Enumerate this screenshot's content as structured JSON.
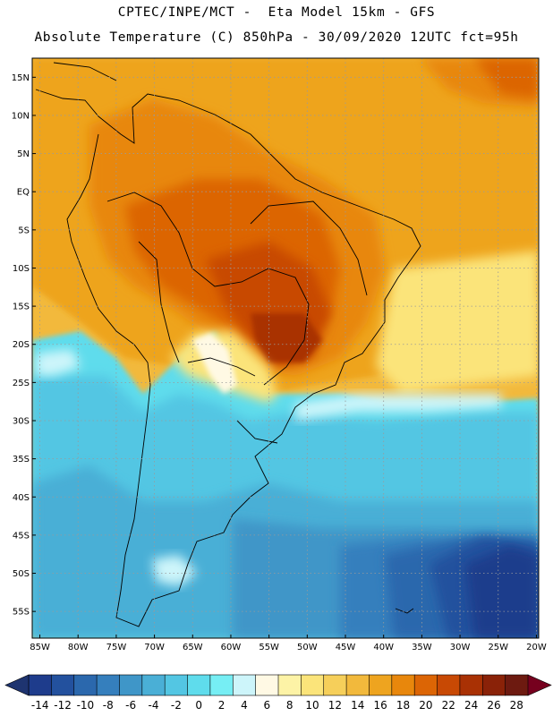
{
  "title_line1": "CPTEC/INPE/MCT -  Eta Model 15km - GFS",
  "title_line2": "Absolute Temperature (C) 850hPa - 30/09/2020 12UTC fct=95h",
  "map": {
    "lat_labels": [
      "15N",
      "10N",
      "5N",
      "EQ",
      "5S",
      "10S",
      "15S",
      "20S",
      "25S",
      "30S",
      "35S",
      "40S",
      "45S",
      "50S",
      "55S"
    ],
    "lat_values": [
      15,
      10,
      5,
      0,
      -5,
      -10,
      -15,
      -20,
      -25,
      -30,
      -35,
      -40,
      -45,
      -50,
      -55
    ],
    "lon_labels": [
      "85W",
      "80W",
      "75W",
      "70W",
      "65W",
      "60W",
      "55W",
      "50W",
      "45W",
      "40W",
      "35W",
      "30W",
      "25W",
      "20W"
    ],
    "lon_values": [
      -85,
      -80,
      -75,
      -70,
      -65,
      -60,
      -55,
      -50,
      -45,
      -40,
      -35,
      -30,
      -25,
      -20
    ],
    "extent": {
      "lon_min": -86,
      "lon_max": -19.7,
      "lat_min": -58.5,
      "lat_max": 17.5
    }
  },
  "colorbar": {
    "labels": [
      "-14",
      "-12",
      "-10",
      "-8",
      "-6",
      "-4",
      "-2",
      "0",
      "2",
      "4",
      "6",
      "8",
      "10",
      "12",
      "14",
      "16",
      "18",
      "20",
      "22",
      "24",
      "26",
      "28"
    ],
    "colors": [
      "#1e3c8c",
      "#23519e",
      "#2b68ad",
      "#357fbd",
      "#3f96c8",
      "#4aafd6",
      "#53c6e3",
      "#5fdcec",
      "#76eef4",
      "#cdf5fa",
      "#fff9e4",
      "#fdf3a6",
      "#fbe47a",
      "#f6cf5a",
      "#f2b93c",
      "#eea41f",
      "#e8870c",
      "#dc6505",
      "#c84904",
      "#a93104",
      "#8a2208",
      "#6d1a10"
    ],
    "low_color": "#1e3470",
    "high_color": "#76001e"
  }
}
